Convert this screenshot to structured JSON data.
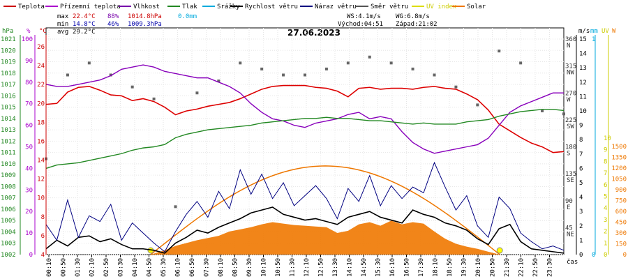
{
  "chart_data": {
    "type": "line",
    "title": "27.06.2023",
    "legend": [
      {
        "label": "Teplota",
        "color": "#cc0000"
      },
      {
        "label": "Přízemní teplota",
        "color": "#aa00cc"
      },
      {
        "label": "Vlhkost",
        "color": "#7700aa"
      },
      {
        "label": "Tlak",
        "color": "#228822"
      },
      {
        "label": "Srážky",
        "color": "#00aadd"
      },
      {
        "label": "Rychlost větru",
        "color": "#000000"
      },
      {
        "label": "Náraz větru",
        "color": "#000080"
      },
      {
        "label": "Směr větru",
        "color": "#555555"
      },
      {
        "label": "UV index",
        "color": "#dddd00"
      },
      {
        "label": "Solar",
        "color": "#ee7700"
      }
    ],
    "stats": {
      "max_label": "max",
      "min_label": "min",
      "avg_label": "avg",
      "temp_max": "22.4°C",
      "temp_min": "14.8°C",
      "temp_avg": "20.2°C",
      "hum_max": "88%",
      "hum_min": "46%",
      "press_max": "1014.8hPa",
      "press_min": "1009.3hPa",
      "rain": "0.0mm",
      "ws": "WS:4.1m/s",
      "wg": "WG:6.8m/s",
      "sunrise": "Východ:04:51",
      "sunset": "Západ:21:02"
    },
    "axes": {
      "hpa": {
        "unit": "hPa",
        "ticks": [
          1002,
          1003,
          1004,
          1005,
          1006,
          1007,
          1008,
          1009,
          1010,
          1011,
          1012,
          1013,
          1014,
          1015,
          1016,
          1017,
          1018,
          1019,
          1020,
          1021
        ]
      },
      "pct": {
        "unit": "%",
        "ticks": [
          0,
          10,
          20,
          30,
          40,
          50,
          60,
          70,
          80,
          90,
          100
        ]
      },
      "degc": {
        "unit": "°C",
        "ticks": [
          4,
          6,
          8,
          10,
          12,
          14,
          16,
          18,
          20,
          22,
          24,
          26
        ]
      },
      "dir": {
        "ticks": [
          "360",
          "315",
          "270",
          "225",
          "180",
          "135",
          "90",
          "45"
        ],
        "labels": [
          "N",
          "NW",
          "W",
          "SW",
          "S",
          "SE",
          "E",
          "NE"
        ]
      },
      "ms": {
        "unit": "m/s",
        "ticks": [
          0,
          1,
          2,
          3,
          4,
          5,
          6,
          7,
          8,
          9,
          10,
          11,
          12,
          13,
          14,
          15
        ]
      },
      "mm": {
        "unit": "mm",
        "ticks": [
          0,
          1
        ]
      },
      "uv": {
        "unit": "UV",
        "ticks": [
          0,
          1,
          2,
          3,
          4,
          5,
          6,
          7,
          8,
          9,
          10
        ]
      },
      "w": {
        "unit": "W",
        "ticks": [
          0,
          150,
          300,
          450,
          600,
          750,
          900,
          1050,
          1200,
          1350,
          1500
        ]
      },
      "x_label": "čas",
      "x_ticks": [
        "00:10",
        "00:50",
        "01:30",
        "02:10",
        "02:50",
        "03:30",
        "04:10",
        "04:50",
        "05:30",
        "06:10",
        "06:50",
        "07:30",
        "08:10",
        "08:50",
        "09:30",
        "10:10",
        "10:50",
        "11:30",
        "12:10",
        "12:50",
        "13:30",
        "14:10",
        "14:50",
        "15:30",
        "16:10",
        "16:50",
        "17:30",
        "18:10",
        "18:50",
        "19:30",
        "20:10",
        "20:50",
        "21:30",
        "22:10",
        "22:50",
        "23:30"
      ]
    },
    "series": [
      {
        "name": "Teplota",
        "unit": "°C",
        "x_hours": [
          0,
          0.5,
          1,
          1.5,
          2,
          2.5,
          3,
          3.5,
          4,
          4.5,
          5,
          5.5,
          6,
          6.5,
          7,
          7.5,
          8,
          8.5,
          9,
          9.5,
          10,
          10.5,
          11,
          11.5,
          12,
          12.5,
          13,
          13.5,
          14,
          14.5,
          15,
          15.5,
          16,
          16.5,
          17,
          17.5,
          18,
          18.5,
          19,
          19.5,
          20,
          20.5,
          21,
          21.5,
          22,
          22.5,
          23,
          23.5,
          24
        ],
        "values": [
          19.9,
          20.0,
          21.2,
          21.7,
          21.8,
          21.4,
          20.9,
          20.8,
          20.3,
          20.5,
          20.2,
          19.6,
          18.8,
          19.2,
          19.4,
          19.7,
          19.9,
          20.1,
          20.5,
          21.0,
          21.5,
          21.8,
          21.9,
          21.9,
          21.9,
          21.7,
          21.6,
          21.3,
          20.7,
          21.6,
          21.7,
          21.5,
          21.6,
          21.6,
          21.5,
          21.7,
          21.8,
          21.6,
          21.5,
          21.0,
          20.4,
          19.3,
          17.8,
          17.1,
          16.4,
          15.8,
          15.4,
          14.8,
          14.9
        ]
      },
      {
        "name": "Vlhkost",
        "unit": "%",
        "x_hours": [
          0,
          0.5,
          1,
          1.5,
          2,
          2.5,
          3,
          3.5,
          4,
          4.5,
          5,
          5.5,
          6,
          6.5,
          7,
          7.5,
          8,
          8.5,
          9,
          9.5,
          10,
          10.5,
          11,
          11.5,
          12,
          12.5,
          13,
          13.5,
          14,
          14.5,
          15,
          15.5,
          16,
          16.5,
          17,
          17.5,
          18,
          18.5,
          19,
          19.5,
          20,
          20.5,
          21,
          21.5,
          22,
          22.5,
          23,
          23.5,
          24
        ],
        "values": [
          79,
          78,
          78,
          79,
          80,
          81,
          83,
          86,
          87,
          88,
          87,
          85,
          84,
          83,
          82,
          82,
          80,
          78,
          75,
          70,
          66,
          63,
          62,
          60,
          59,
          61,
          62,
          63,
          65,
          66,
          63,
          64,
          63,
          57,
          52,
          49,
          47,
          48,
          49,
          50,
          51,
          54,
          60,
          66,
          69,
          71,
          73,
          75,
          75
        ]
      },
      {
        "name": "Tlak",
        "unit": "hPa",
        "x_hours": [
          0,
          0.5,
          1,
          1.5,
          2,
          2.5,
          3,
          3.5,
          4,
          4.5,
          5,
          5.5,
          6,
          6.5,
          7,
          7.5,
          8,
          8.5,
          9,
          9.5,
          10,
          10.5,
          11,
          11.5,
          12,
          12.5,
          13,
          13.5,
          14,
          14.5,
          15,
          15.5,
          16,
          16.5,
          17,
          17.5,
          18,
          18.5,
          19,
          19.5,
          20,
          20.5,
          21,
          21.5,
          22,
          22.5,
          23,
          23.5,
          24
        ],
        "values": [
          1009.6,
          1009.9,
          1010.0,
          1010.1,
          1010.3,
          1010.5,
          1010.7,
          1010.9,
          1011.2,
          1011.4,
          1011.5,
          1011.7,
          1012.3,
          1012.6,
          1012.8,
          1013.0,
          1013.1,
          1013.2,
          1013.3,
          1013.4,
          1013.6,
          1013.7,
          1013.8,
          1013.9,
          1014.0,
          1014.0,
          1014.1,
          1014.0,
          1014.0,
          1013.9,
          1013.8,
          1013.8,
          1013.7,
          1013.6,
          1013.5,
          1013.6,
          1013.5,
          1013.5,
          1013.5,
          1013.7,
          1013.8,
          1013.9,
          1014.2,
          1014.4,
          1014.6,
          1014.7,
          1014.8,
          1014.8,
          1014.7
        ]
      },
      {
        "name": "Rychlost větru",
        "unit": "m/s",
        "x_hours": [
          0,
          0.5,
          1,
          1.5,
          2,
          2.5,
          3,
          3.5,
          4,
          4.5,
          5,
          5.5,
          6,
          6.5,
          7,
          7.5,
          8,
          8.5,
          9,
          9.5,
          10,
          10.5,
          11,
          11.5,
          12,
          12.5,
          13,
          13.5,
          14,
          14.5,
          15,
          15.5,
          16,
          16.5,
          17,
          17.5,
          18,
          18.5,
          19,
          19.5,
          20,
          20.5,
          21,
          21.5,
          22,
          22.5,
          23,
          23.5,
          24
        ],
        "values": [
          0.4,
          1.0,
          0.6,
          1.2,
          1.3,
          0.9,
          1.1,
          0.7,
          0.4,
          0.4,
          0.3,
          0.1,
          0.8,
          1.2,
          1.7,
          1.5,
          1.9,
          2.2,
          2.5,
          2.9,
          3.1,
          3.3,
          2.8,
          2.6,
          2.4,
          2.5,
          2.3,
          2.1,
          2.6,
          2.8,
          3.0,
          2.6,
          2.4,
          2.2,
          3.1,
          2.8,
          2.6,
          2.2,
          2.0,
          1.7,
          1.1,
          0.7,
          1.8,
          2.1,
          0.9,
          0.4,
          0.3,
          0.2,
          0.1
        ]
      },
      {
        "name": "Náraz větru",
        "unit": "m/s",
        "x_hours": [
          0,
          0.5,
          1,
          1.5,
          2,
          2.5,
          3,
          3.5,
          4,
          4.5,
          5,
          5.5,
          6,
          6.5,
          7,
          7.5,
          8,
          8.5,
          9,
          9.5,
          10,
          10.5,
          11,
          11.5,
          12,
          12.5,
          13,
          13.5,
          14,
          14.5,
          15,
          15.5,
          16,
          16.5,
          17,
          17.5,
          18,
          18.5,
          19,
          19.5,
          20,
          20.5,
          21,
          21.5,
          22,
          22.5,
          23,
          23.5,
          24
        ],
        "values": [
          2.1,
          1.0,
          3.8,
          1.2,
          2.7,
          2.3,
          3.5,
          1.0,
          2.2,
          1.5,
          0.8,
          0.2,
          1.6,
          2.8,
          3.7,
          2.6,
          4.4,
          3.2,
          5.9,
          4.2,
          5.6,
          3.9,
          5.0,
          3.4,
          4.1,
          4.8,
          3.9,
          2.5,
          4.6,
          3.7,
          5.5,
          3.4,
          4.8,
          3.9,
          4.7,
          4.3,
          6.4,
          4.7,
          3.1,
          4.1,
          2.0,
          1.2,
          4.0,
          3.2,
          1.5,
          0.9,
          0.4,
          0.6,
          0.3
        ]
      },
      {
        "name": "Solar",
        "unit": "W",
        "x_hours": [
          4.85,
          5.5,
          6,
          6.5,
          7,
          7.5,
          8,
          8.5,
          9,
          9.5,
          10,
          10.5,
          11,
          11.5,
          12,
          12.5,
          13,
          13.5,
          14,
          14.5,
          15,
          15.5,
          16,
          16.5,
          17,
          17.5,
          18,
          18.5,
          19,
          19.5,
          20,
          20.5,
          21.03
        ],
        "values": [
          0,
          60,
          120,
          160,
          200,
          230,
          260,
          320,
          350,
          380,
          420,
          450,
          430,
          410,
          400,
          390,
          380,
          300,
          330,
          420,
          450,
          400,
          470,
          420,
          450,
          430,
          320,
          220,
          150,
          110,
          80,
          40,
          0
        ]
      }
    ],
    "solar_clear_sky": {
      "x_hours": [
        4.85,
        13.0,
        21.03
      ],
      "values": [
        0,
        1230,
        0
      ]
    },
    "wind_direction_sample": {
      "x_hours": [
        0,
        1,
        2,
        3,
        4,
        5,
        6,
        7,
        8,
        9,
        10,
        11,
        12,
        13,
        14,
        15,
        16,
        17,
        18,
        19,
        20,
        21,
        22,
        23,
        24
      ],
      "values": [
        160,
        300,
        320,
        300,
        280,
        260,
        80,
        270,
        290,
        320,
        310,
        300,
        300,
        310,
        320,
        330,
        320,
        310,
        300,
        280,
        250,
        340,
        320,
        240,
        235
      ]
    }
  }
}
